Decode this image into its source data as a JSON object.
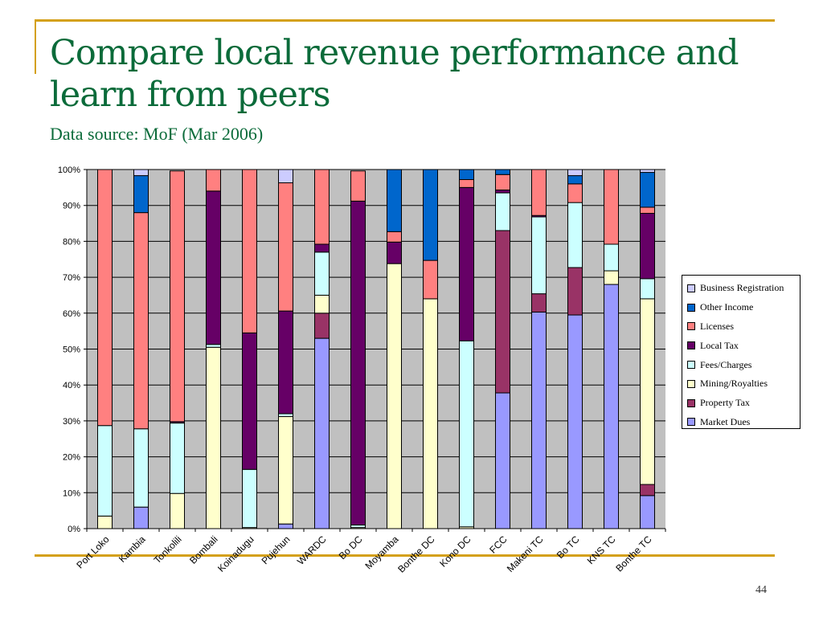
{
  "slide": {
    "title": "Compare local revenue performance and learn from peers",
    "subtitle": "Data source: MoF (Mar 2006)",
    "page_number": "44"
  },
  "chart_data": {
    "type": "bar",
    "stacked": "percent",
    "title": "",
    "xlabel": "",
    "ylabel": "",
    "ylim": [
      0,
      100
    ],
    "y_ticks": [
      "0%",
      "10%",
      "20%",
      "30%",
      "40%",
      "50%",
      "60%",
      "70%",
      "80%",
      "90%",
      "100%"
    ],
    "grid": true,
    "legend_position": "right",
    "categories": [
      "Port Loko",
      "Kambia",
      "Tonkolili",
      "Bombali",
      "Koinadugu",
      "Pujehun",
      "WARDC",
      "Bo DC",
      "Moyamba",
      "Bonthe DC",
      "Kono DC",
      "FCC",
      "Makeni TC",
      "Bo TC",
      "KNS TC",
      "Bonthe TC"
    ],
    "series": [
      {
        "name": "Market Dues",
        "color": "#9999ff",
        "values": [
          0,
          6.0,
          0,
          0,
          0,
          1.3,
          53.0,
          0,
          0,
          0,
          0,
          37.8,
          60.3,
          59.5,
          68.0,
          9.2
        ]
      },
      {
        "name": "Property Tax",
        "color": "#993366",
        "values": [
          0,
          0,
          0,
          0,
          0,
          0,
          7.0,
          0,
          0,
          0,
          0,
          45.2,
          5.1,
          13.2,
          0,
          3.1
        ]
      },
      {
        "name": "Mining/Royalties",
        "color": "#ffffcc",
        "values": [
          3.5,
          0,
          9.8,
          50.5,
          0.3,
          29.9,
          5.0,
          0.3,
          73.8,
          64.0,
          0.5,
          0,
          0,
          0,
          3.8,
          51.7
        ]
      },
      {
        "name": "Fees/Charges",
        "color": "#ccffff",
        "values": [
          25.2,
          21.8,
          19.6,
          0.8,
          16.2,
          0.8,
          12.0,
          0.7,
          0,
          0,
          51.8,
          10.5,
          21.4,
          18.1,
          7.4,
          5.6
        ]
      },
      {
        "name": "Local Tax",
        "color": "#660066",
        "values": [
          0,
          0,
          0.4,
          42.7,
          38.0,
          28.6,
          2.2,
          90.2,
          6.0,
          0,
          42.7,
          0.8,
          0.4,
          0,
          0,
          18.2
        ]
      },
      {
        "name": "Licenses",
        "color": "#ff8080",
        "values": [
          71.3,
          60.2,
          69.8,
          6.0,
          45.5,
          35.7,
          20.8,
          8.4,
          2.9,
          10.7,
          2.2,
          4.3,
          12.8,
          5.2,
          20.8,
          1.7
        ]
      },
      {
        "name": "Other Income",
        "color": "#0066cc",
        "values": [
          0,
          10.3,
          0,
          0,
          0,
          0,
          0,
          0,
          17.3,
          25.3,
          2.8,
          1.4,
          0,
          2.3,
          0,
          9.7
        ]
      },
      {
        "name": "Business Registration",
        "color": "#ccccff",
        "values": [
          0,
          1.7,
          0,
          0,
          0,
          3.7,
          0,
          0,
          0,
          0,
          0,
          0,
          0,
          1.7,
          0,
          0.8
        ]
      }
    ],
    "legend_order": [
      "Business Registration",
      "Other Income",
      "Licenses",
      "Local Tax",
      "Fees/Charges",
      "Mining/Royalties",
      "Property Tax",
      "Market Dues"
    ]
  }
}
